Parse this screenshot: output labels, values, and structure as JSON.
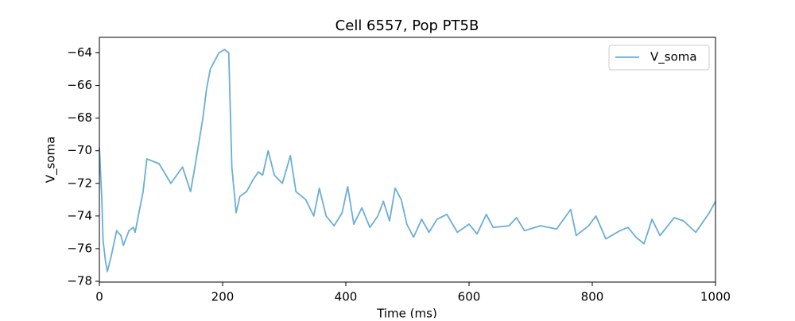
{
  "chart_data": {
    "type": "line",
    "title": "Cell 6557, Pop PT5B",
    "xlabel": "Time (ms)",
    "ylabel": "V_soma",
    "x": [
      0,
      4,
      6,
      10,
      13,
      19,
      28,
      35,
      39,
      48,
      55,
      58,
      71,
      77,
      97,
      116,
      135,
      148,
      155,
      168,
      174,
      180,
      187,
      194,
      203,
      210,
      215,
      222,
      228,
      239,
      249,
      258,
      265,
      274,
      284,
      297,
      310,
      319,
      335,
      348,
      357,
      368,
      381,
      394,
      403,
      413,
      426,
      439,
      452,
      461,
      471,
      480,
      490,
      499,
      510,
      523,
      535,
      548,
      564,
      581,
      600,
      613,
      628,
      639,
      665,
      677,
      690,
      716,
      742,
      765,
      774,
      794,
      806,
      822,
      845,
      858,
      871,
      884,
      897,
      910,
      933,
      948,
      968,
      990,
      1000
    ],
    "series": [
      {
        "name": "V_soma",
        "color": "#6baed6",
        "values": [
          -69.8,
          -73,
          -75.5,
          -76.8,
          -77.4,
          -76.5,
          -74.9,
          -75.2,
          -75.8,
          -74.9,
          -74.7,
          -75,
          -72.5,
          -70.5,
          -70.8,
          -72,
          -71,
          -72.5,
          -71,
          -68,
          -66.2,
          -65,
          -64.5,
          -64,
          -63.8,
          -64,
          -71,
          -73.8,
          -72.8,
          -72.5,
          -71.8,
          -71.3,
          -71.5,
          -70,
          -71.5,
          -72,
          -70.3,
          -72.5,
          -73,
          -74,
          -72.3,
          -74,
          -74.6,
          -73.8,
          -72.2,
          -74.5,
          -73.5,
          -74.7,
          -74,
          -73.1,
          -74.3,
          -72.3,
          -73,
          -74.5,
          -75.3,
          -74.2,
          -75,
          -74.2,
          -73.9,
          -75,
          -74.5,
          -75.1,
          -73.9,
          -74.7,
          -74.6,
          -74.1,
          -74.9,
          -74.6,
          -74.8,
          -73.6,
          -75.2,
          -74.6,
          -74,
          -75.4,
          -74.9,
          -74.7,
          -75.3,
          -75.7,
          -74.2,
          -75.2,
          -74.1,
          -74.3,
          -75,
          -73.8,
          -73.1
        ]
      }
    ],
    "xlim": [
      0,
      1000
    ],
    "xticks": [
      0,
      200,
      400,
      600,
      800,
      1000
    ],
    "ylim": [
      -78.05,
      -63.05
    ],
    "yticks": [
      {
        "value": -78,
        "label": "−78"
      },
      {
        "value": -76,
        "label": "−76"
      },
      {
        "value": -74,
        "label": "−74"
      },
      {
        "value": -72,
        "label": "−72"
      },
      {
        "value": -70,
        "label": "−70"
      },
      {
        "value": -68,
        "label": "−68"
      },
      {
        "value": -66,
        "label": "−66"
      },
      {
        "value": -64,
        "label": "−64"
      }
    ],
    "legend_loc": "upper right",
    "grid": false
  }
}
